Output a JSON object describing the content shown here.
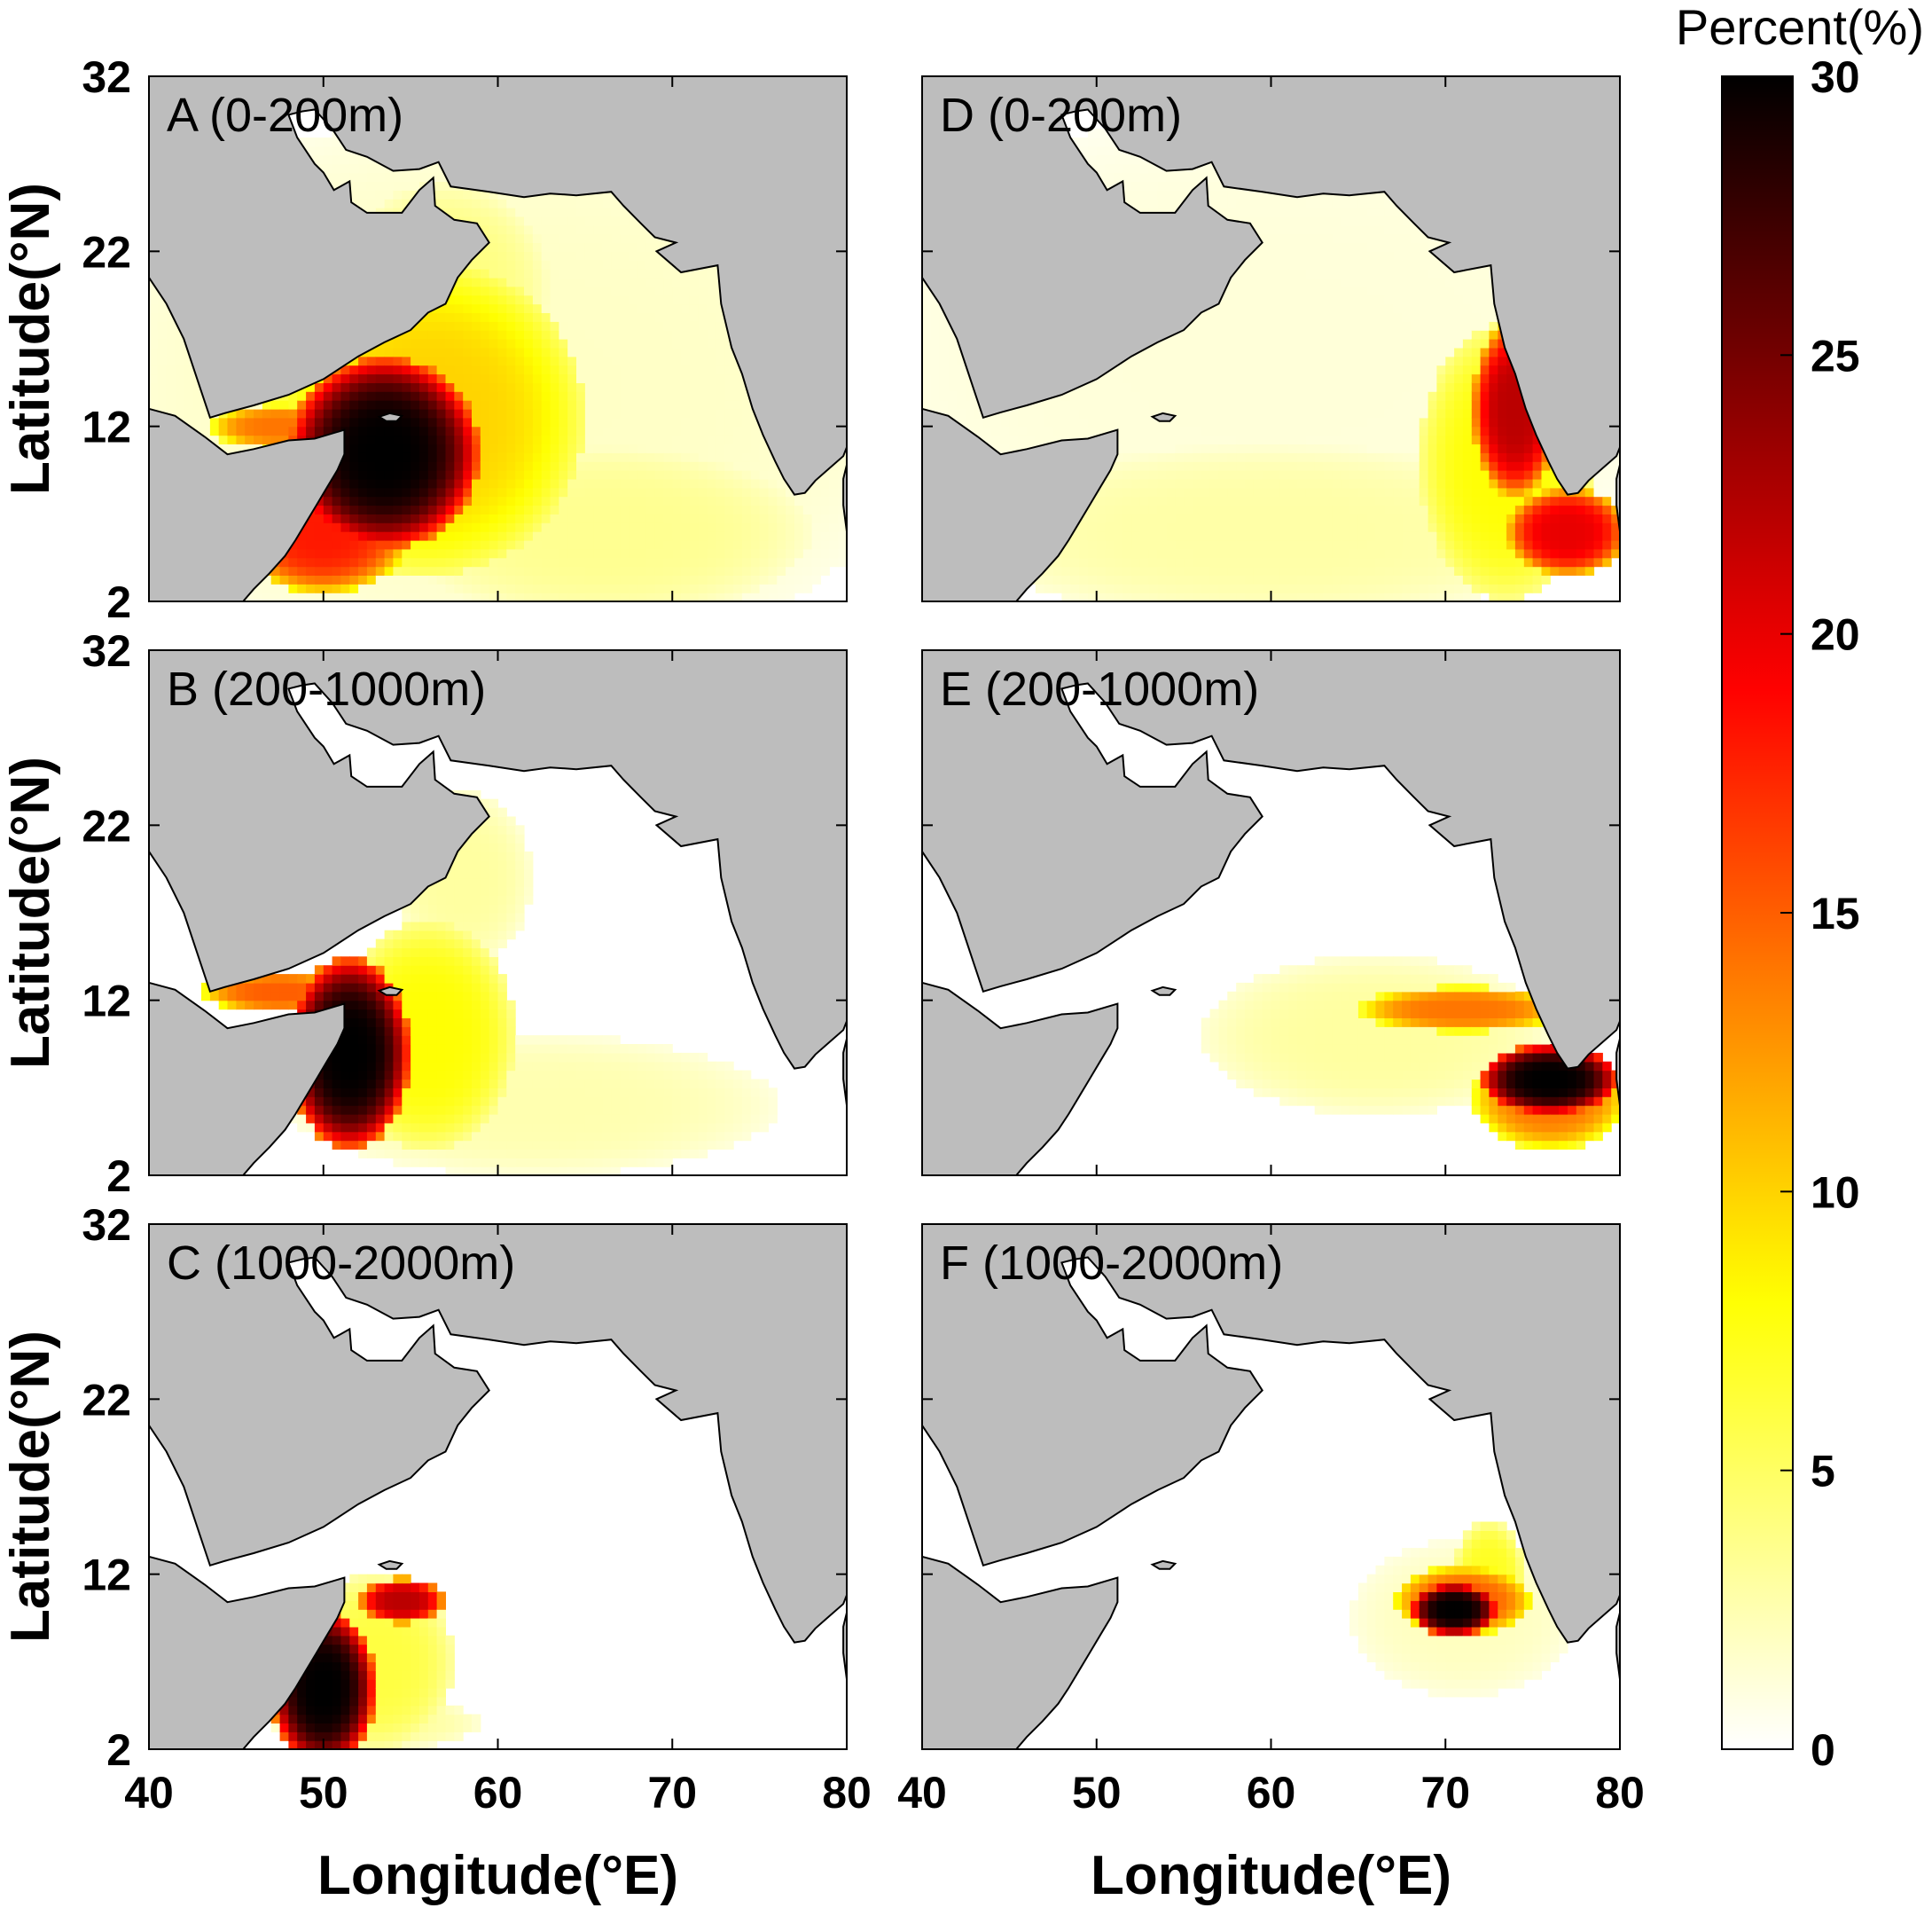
{
  "chart_data": {
    "type": "heatmap",
    "colormap": "hot (reversed)",
    "land_color": "#bdbdbd",
    "colorbar": {
      "title": "Percent(%)",
      "range": [
        0,
        30
      ],
      "ticks": [
        "0",
        "5",
        "10",
        "15",
        "20",
        "25",
        "30"
      ]
    },
    "x_axis": {
      "label": "Longitude(°E)",
      "range": [
        40,
        80
      ],
      "ticks": [
        "40",
        "50",
        "60",
        "70",
        "80"
      ]
    },
    "y_axis": {
      "label": "Latitude(°N)",
      "range": [
        2,
        32
      ],
      "ticks": [
        "2",
        "12",
        "22",
        "32"
      ]
    },
    "panels": [
      {
        "label": "A (0-200m)",
        "blobs": [
          {
            "lon": 53.5,
            "lat": 10.5,
            "rlon": 5.5,
            "rlat": 5.5,
            "value": 30
          },
          {
            "lon": 47.5,
            "lat": 12.0,
            "rlon": 4.0,
            "rlat": 1.3,
            "value": 14
          },
          {
            "lon": 56.0,
            "lat": 12.5,
            "rlon": 9.0,
            "rlat": 9.0,
            "value": 10
          },
          {
            "lon": 50.0,
            "lat": 6.0,
            "rlon": 5.0,
            "rlat": 3.5,
            "value": 18
          },
          {
            "lon": 57.0,
            "lat": 20.0,
            "rlon": 6.0,
            "rlat": 6.0,
            "value": 4
          },
          {
            "lon": 66.0,
            "lat": 6.0,
            "rlon": 12.0,
            "rlat": 5.0,
            "value": 3.5
          },
          {
            "lon": 60.0,
            "lat": 14.0,
            "rlon": 25.0,
            "rlat": 16.0,
            "value": 1.8
          }
        ]
      },
      {
        "label": "D (0-200m)",
        "blobs": [
          {
            "lon": 74.0,
            "lat": 13.0,
            "rlon": 2.5,
            "rlat": 5.0,
            "value": 22
          },
          {
            "lon": 77.0,
            "lat": 6.0,
            "rlon": 3.5,
            "rlat": 2.5,
            "value": 20
          },
          {
            "lon": 73.5,
            "lat": 10.0,
            "rlon": 5.0,
            "rlat": 8.0,
            "value": 8
          },
          {
            "lon": 60.0,
            "lat": 6.0,
            "rlon": 18.0,
            "rlat": 5.0,
            "value": 2.8
          },
          {
            "lon": 60.0,
            "lat": 16.0,
            "rlon": 25.0,
            "rlat": 14.0,
            "value": 1.2
          }
        ]
      },
      {
        "label": "B (200-1000m)",
        "blobs": [
          {
            "lon": 51.5,
            "lat": 9.0,
            "rlon": 3.5,
            "rlat": 5.5,
            "value": 30
          },
          {
            "lon": 47.5,
            "lat": 12.5,
            "rlon": 4.5,
            "rlat": 1.2,
            "value": 15
          },
          {
            "lon": 56.0,
            "lat": 10.0,
            "rlon": 5.0,
            "rlat": 6.5,
            "value": 8
          },
          {
            "lon": 58.0,
            "lat": 19.0,
            "rlon": 4.0,
            "rlat": 5.0,
            "value": 3
          },
          {
            "lon": 62.0,
            "lat": 6.0,
            "rlon": 14.0,
            "rlat": 4.0,
            "value": 2.5
          }
        ]
      },
      {
        "label": "E (200-1000m)",
        "blobs": [
          {
            "lon": 76.0,
            "lat": 7.5,
            "rlon": 4.0,
            "rlat": 2.0,
            "value": 30
          },
          {
            "lon": 71.0,
            "lat": 11.5,
            "rlon": 6.0,
            "rlat": 1.3,
            "value": 14
          },
          {
            "lon": 76.0,
            "lat": 6.5,
            "rlon": 4.5,
            "rlat": 3.0,
            "value": 14
          },
          {
            "lon": 66.0,
            "lat": 10.0,
            "rlon": 10.0,
            "rlat": 4.5,
            "value": 3
          }
        ]
      },
      {
        "label": "C (1000-2000m)",
        "blobs": [
          {
            "lon": 50.0,
            "lat": 5.5,
            "rlon": 3.0,
            "rlat": 4.5,
            "value": 30
          },
          {
            "lon": 54.5,
            "lat": 10.5,
            "rlon": 2.5,
            "rlat": 1.3,
            "value": 22
          },
          {
            "lon": 53.0,
            "lat": 7.0,
            "rlon": 4.5,
            "rlat": 5.0,
            "value": 6
          },
          {
            "lon": 53.0,
            "lat": 3.5,
            "rlon": 6.0,
            "rlat": 1.5,
            "value": 3
          }
        ]
      },
      {
        "label": "F (1000-2000m)",
        "blobs": [
          {
            "lon": 70.5,
            "lat": 10.0,
            "rlon": 2.5,
            "rlat": 1.5,
            "value": 30
          },
          {
            "lon": 71.0,
            "lat": 10.5,
            "rlon": 4.0,
            "rlat": 2.0,
            "value": 15
          },
          {
            "lon": 72.5,
            "lat": 12.0,
            "rlon": 2.0,
            "rlat": 3.0,
            "value": 7
          },
          {
            "lon": 71.0,
            "lat": 9.5,
            "rlon": 6.5,
            "rlat": 4.5,
            "value": 2
          }
        ]
      }
    ]
  }
}
